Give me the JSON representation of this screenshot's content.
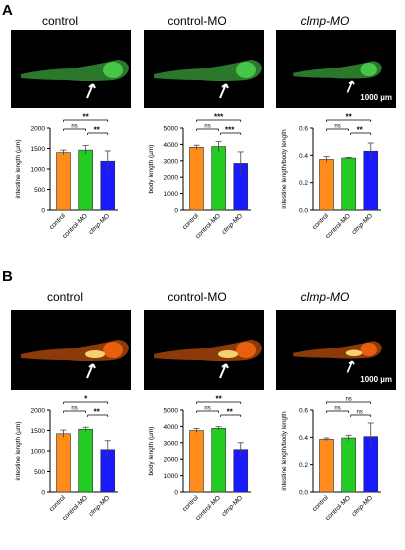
{
  "panels": [
    {
      "letter": "A",
      "titles": [
        "control",
        "control-MO",
        "clmp-MO"
      ],
      "title_italic": [
        false,
        false,
        true
      ],
      "fluorescence": "#4ed84e",
      "scale_label": "1000 µm"
    },
    {
      "letter": "B",
      "titles": [
        "control",
        "control-MO",
        "clmp-MO"
      ],
      "title_italic": [
        false,
        false,
        true
      ],
      "fluorescence": "#ff6a10",
      "scale_label": "1000 µm"
    }
  ],
  "colors": {
    "control": "#ff8c1a",
    "control_mo": "#22cc22",
    "clmp_mo": "#1a1aff"
  },
  "chart_data": [
    {
      "type": "bar",
      "panel": "A",
      "categories": [
        "control",
        "control-MO",
        "clmp-MO"
      ],
      "values": [
        1400,
        1460,
        1190
      ],
      "errors": [
        60,
        110,
        250
      ],
      "ylabel": "intestine length (µm)",
      "ylim": [
        0,
        2000
      ],
      "yticks": [
        0,
        500,
        1000,
        1500,
        2000
      ],
      "significance": [
        {
          "a": 0,
          "b": 2,
          "label": "**"
        },
        {
          "a": 0,
          "b": 1,
          "label": "ns"
        },
        {
          "a": 1,
          "b": 2,
          "label": "**"
        }
      ]
    },
    {
      "type": "bar",
      "panel": "A",
      "categories": [
        "control",
        "control-MO",
        "clmp-MO"
      ],
      "values": [
        3820,
        3870,
        2840
      ],
      "errors": [
        130,
        300,
        700
      ],
      "ylabel": "body length (µm)",
      "ylim": [
        0,
        5000
      ],
      "yticks": [
        0,
        1000,
        2000,
        3000,
        4000,
        5000
      ],
      "significance": [
        {
          "a": 0,
          "b": 2,
          "label": "***"
        },
        {
          "a": 0,
          "b": 1,
          "label": "ns"
        },
        {
          "a": 1,
          "b": 2,
          "label": "***"
        }
      ]
    },
    {
      "type": "bar",
      "panel": "A",
      "categories": [
        "control",
        "control-MO",
        "clmp-MO"
      ],
      "values": [
        0.37,
        0.38,
        0.43
      ],
      "errors": [
        0.02,
        0.005,
        0.06
      ],
      "ylabel": "intestine length/body length",
      "ylim": [
        0,
        0.6
      ],
      "yticks": [
        0.0,
        0.2,
        0.4,
        0.6
      ],
      "significance": [
        {
          "a": 0,
          "b": 2,
          "label": "**"
        },
        {
          "a": 0,
          "b": 1,
          "label": "ns"
        },
        {
          "a": 1,
          "b": 2,
          "label": "**"
        }
      ]
    },
    {
      "type": "bar",
      "panel": "B",
      "categories": [
        "control",
        "control-MO",
        "clmp-MO"
      ],
      "values": [
        1420,
        1530,
        1030
      ],
      "errors": [
        90,
        50,
        220
      ],
      "ylabel": "intestine length (µm)",
      "ylim": [
        0,
        2000
      ],
      "yticks": [
        0,
        500,
        1000,
        1500,
        2000
      ],
      "significance": [
        {
          "a": 0,
          "b": 2,
          "label": "*"
        },
        {
          "a": 0,
          "b": 1,
          "label": "ns"
        },
        {
          "a": 1,
          "b": 2,
          "label": "**"
        }
      ]
    },
    {
      "type": "bar",
      "panel": "B",
      "categories": [
        "control",
        "control-MO",
        "clmp-MO"
      ],
      "values": [
        3750,
        3880,
        2580
      ],
      "errors": [
        120,
        100,
        420
      ],
      "ylabel": "body length (µm)",
      "ylim": [
        0,
        5000
      ],
      "yticks": [
        0,
        1000,
        2000,
        3000,
        4000,
        5000
      ],
      "significance": [
        {
          "a": 0,
          "b": 2,
          "label": "**"
        },
        {
          "a": 0,
          "b": 1,
          "label": "ns"
        },
        {
          "a": 1,
          "b": 2,
          "label": "**"
        }
      ]
    },
    {
      "type": "bar",
      "panel": "B",
      "categories": [
        "control",
        "control-MO",
        "clmp-MO"
      ],
      "values": [
        0.385,
        0.395,
        0.405
      ],
      "errors": [
        0.01,
        0.02,
        0.1
      ],
      "ylabel": "intestine length/body length",
      "ylim": [
        0,
        0.6
      ],
      "yticks": [
        0.0,
        0.2,
        0.4,
        0.6
      ],
      "significance": [
        {
          "a": 0,
          "b": 2,
          "label": "ns"
        },
        {
          "a": 0,
          "b": 1,
          "label": "ns"
        },
        {
          "a": 1,
          "b": 2,
          "label": "ns"
        }
      ]
    }
  ]
}
